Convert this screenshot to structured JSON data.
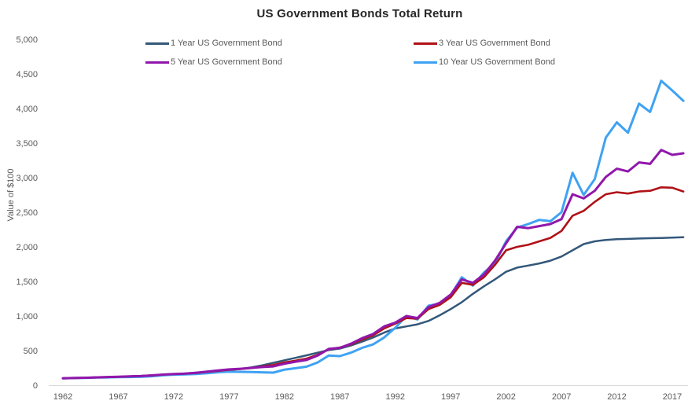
{
  "chart": {
    "title": "US Government Bonds Total Return",
    "y_axis_title": "Value of $100",
    "title_color": "#262626",
    "tick_text_color": "#595959",
    "axis_line_color": "#d9d9d9",
    "background_color": "#ffffff",
    "y_ticks": [
      {
        "value": 0,
        "label": "0"
      },
      {
        "value": 500,
        "label": "500"
      },
      {
        "value": 1000,
        "label": "1,000"
      },
      {
        "value": 1500,
        "label": "1,500"
      },
      {
        "value": 2000,
        "label": "2,000"
      },
      {
        "value": 2500,
        "label": "2,500"
      },
      {
        "value": 3000,
        "label": "3,000"
      },
      {
        "value": 3500,
        "label": "3,500"
      },
      {
        "value": 4000,
        "label": "4,000"
      },
      {
        "value": 4500,
        "label": "4,500"
      },
      {
        "value": 5000,
        "label": "5,000"
      }
    ],
    "x_ticks": [
      {
        "value": 1962,
        "label": "1962"
      },
      {
        "value": 1967,
        "label": "1967"
      },
      {
        "value": 1972,
        "label": "1972"
      },
      {
        "value": 1977,
        "label": "1977"
      },
      {
        "value": 1982,
        "label": "1982"
      },
      {
        "value": 1987,
        "label": "1987"
      },
      {
        "value": 1992,
        "label": "1992"
      },
      {
        "value": 1997,
        "label": "1997"
      },
      {
        "value": 2002,
        "label": "2002"
      },
      {
        "value": 2007,
        "label": "2007"
      },
      {
        "value": 2012,
        "label": "2012"
      },
      {
        "value": 2017,
        "label": "2017"
      }
    ]
  },
  "chart_data": {
    "type": "line",
    "title": "US Government Bonds Total Return",
    "xlabel": "",
    "ylabel": "Value of $100",
    "ylim": [
      0,
      5000
    ],
    "xlim": [
      1962,
      2018
    ],
    "grid": false,
    "legend_position": "top",
    "x": [
      1962,
      1963,
      1964,
      1965,
      1966,
      1967,
      1968,
      1969,
      1970,
      1971,
      1972,
      1973,
      1974,
      1975,
      1976,
      1977,
      1978,
      1979,
      1980,
      1981,
      1982,
      1983,
      1984,
      1985,
      1986,
      1987,
      1988,
      1989,
      1990,
      1991,
      1992,
      1993,
      1994,
      1995,
      1996,
      1997,
      1998,
      1999,
      2000,
      2001,
      2002,
      2003,
      2004,
      2005,
      2006,
      2007,
      2008,
      2009,
      2010,
      2011,
      2012,
      2013,
      2014,
      2015,
      2016,
      2017,
      2018
    ],
    "series": [
      {
        "name": "1 Year US Government Bond",
        "color": "#33587a",
        "values": [
          100,
          103,
          107,
          111,
          116,
          121,
          127,
          134,
          142,
          151,
          159,
          169,
          182,
          195,
          207,
          219,
          235,
          258,
          288,
          324,
          360,
          395,
          432,
          470,
          508,
          530,
          575,
          630,
          690,
          760,
          820,
          850,
          880,
          930,
          1010,
          1100,
          1200,
          1320,
          1430,
          1530,
          1640,
          1700,
          1730,
          1760,
          1800,
          1860,
          1950,
          2040,
          2080,
          2100,
          2110,
          2115,
          2120,
          2125,
          2128,
          2133,
          2140
        ]
      },
      {
        "name": "3 Year US Government Bond",
        "color": "#b01117",
        "values": [
          100,
          103,
          107,
          112,
          117,
          122,
          127,
          133,
          143,
          153,
          161,
          167,
          176,
          192,
          207,
          222,
          233,
          248,
          270,
          292,
          330,
          355,
          385,
          440,
          520,
          545,
          590,
          660,
          720,
          820,
          890,
          970,
          960,
          1100,
          1160,
          1270,
          1480,
          1450,
          1560,
          1740,
          1950,
          2000,
          2030,
          2080,
          2130,
          2230,
          2450,
          2520,
          2650,
          2760,
          2790,
          2770,
          2800,
          2810,
          2860,
          2855,
          2800
        ]
      },
      {
        "name": "5 Year US Government Bond",
        "color": "#9117ab",
        "values": [
          100,
          104,
          108,
          113,
          118,
          123,
          127,
          132,
          141,
          153,
          162,
          168,
          178,
          196,
          212,
          228,
          238,
          250,
          262,
          272,
          310,
          340,
          365,
          430,
          525,
          540,
          600,
          680,
          740,
          850,
          905,
          1000,
          970,
          1130,
          1190,
          1310,
          1530,
          1480,
          1600,
          1800,
          2050,
          2290,
          2270,
          2300,
          2330,
          2400,
          2760,
          2700,
          2810,
          3010,
          3130,
          3090,
          3220,
          3200,
          3400,
          3330,
          3352
        ]
      },
      {
        "name": "10 Year US Government Bond",
        "color": "#3fa2f3",
        "values": [
          100,
          103,
          106,
          110,
          113,
          116,
          118,
          121,
          130,
          143,
          152,
          157,
          162,
          173,
          188,
          195,
          193,
          190,
          186,
          182,
          225,
          245,
          268,
          330,
          430,
          420,
          470,
          540,
          590,
          690,
          830,
          1000,
          950,
          1150,
          1180,
          1300,
          1560,
          1440,
          1630,
          1760,
          2080,
          2280,
          2330,
          2390,
          2370,
          2500,
          3070,
          2750,
          2980,
          3580,
          3800,
          3650,
          4070,
          3950,
          4400,
          4260,
          4110
        ]
      }
    ]
  }
}
